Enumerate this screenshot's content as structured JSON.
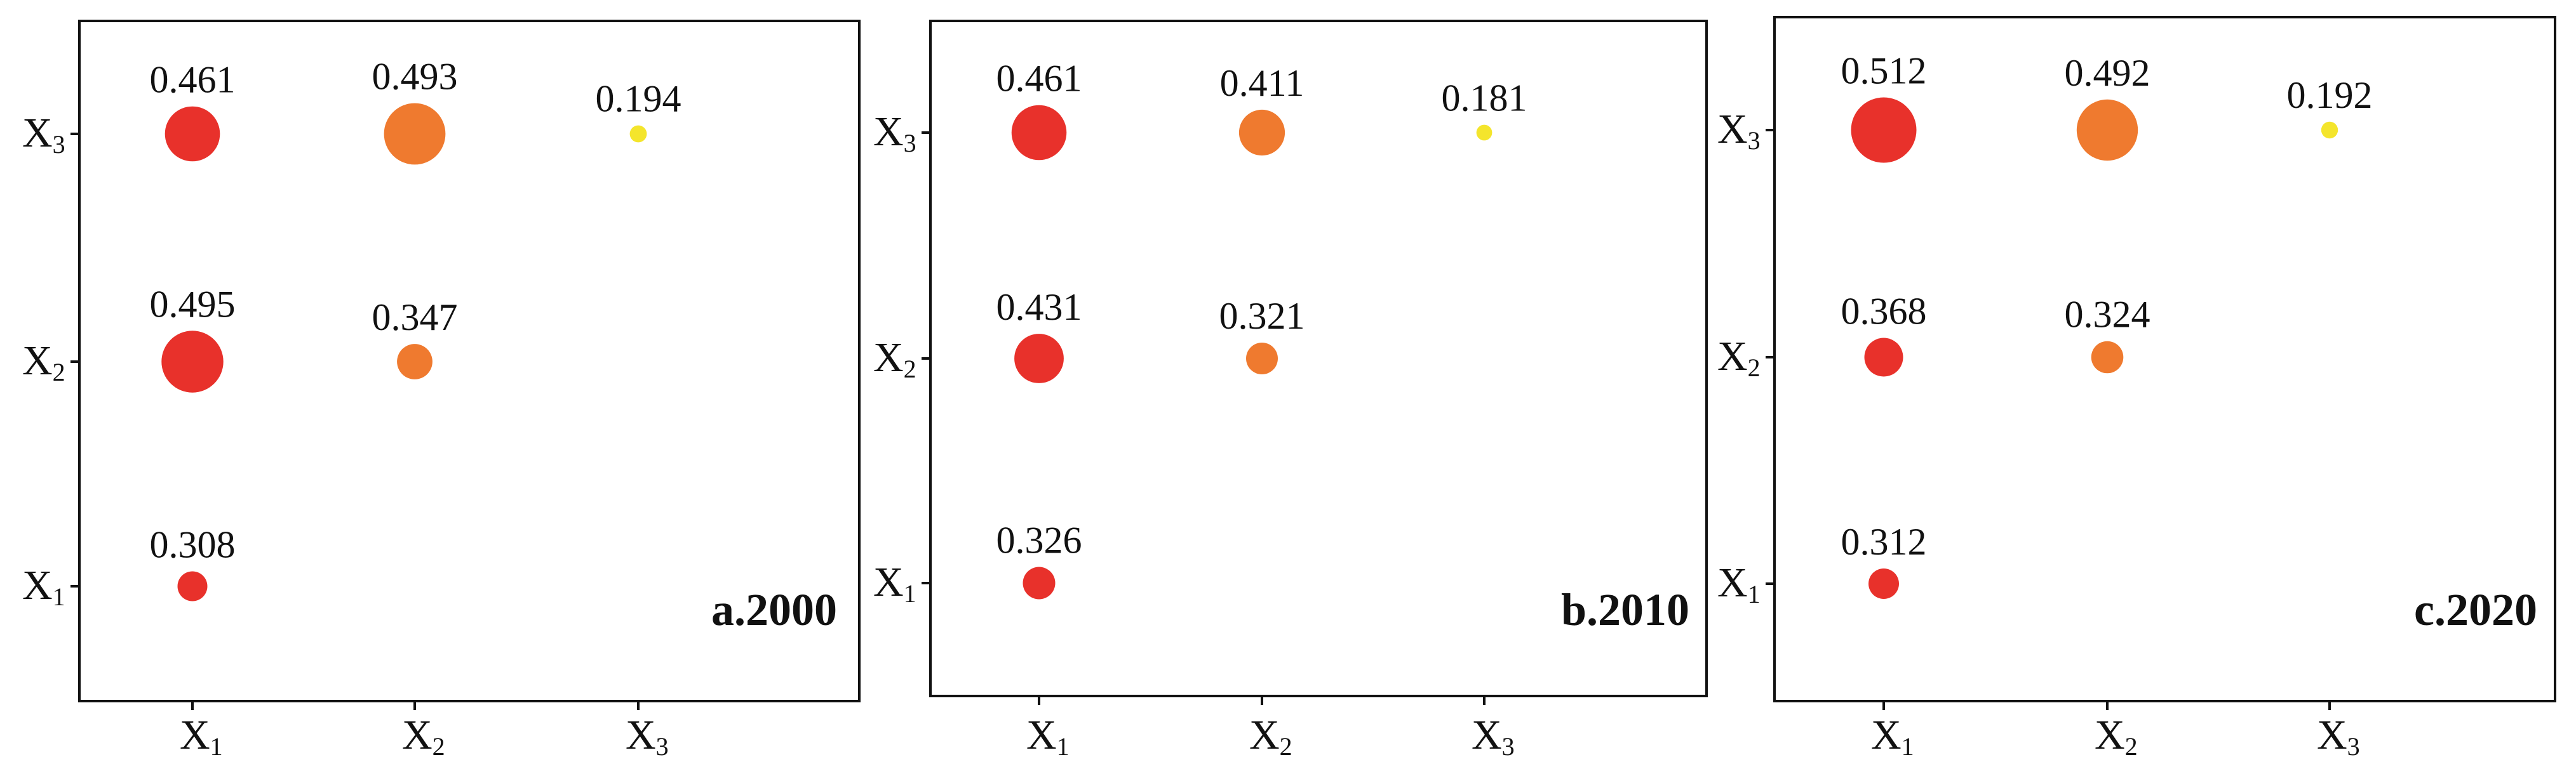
{
  "chart_data": [
    {
      "type": "scatter",
      "title": "a.2000",
      "x_categories": [
        "X1",
        "X2",
        "X3"
      ],
      "y_categories": [
        "X1",
        "X2",
        "X3"
      ],
      "points": [
        {
          "x": "X1",
          "y": "X1",
          "value": 0.308,
          "label": "0.308",
          "color": "#e8312b"
        },
        {
          "x": "X1",
          "y": "X2",
          "value": 0.495,
          "label": "0.495",
          "color": "#e8312b"
        },
        {
          "x": "X2",
          "y": "X2",
          "value": 0.347,
          "label": "0.347",
          "color": "#ef7a2f"
        },
        {
          "x": "X1",
          "y": "X3",
          "value": 0.461,
          "label": "0.461",
          "color": "#e8312b"
        },
        {
          "x": "X2",
          "y": "X3",
          "value": 0.493,
          "label": "0.493",
          "color": "#ef7a2f"
        },
        {
          "x": "X3",
          "y": "X3",
          "value": 0.194,
          "label": "0.194",
          "color": "#f4e52c"
        }
      ]
    },
    {
      "type": "scatter",
      "title": "b.2010",
      "x_categories": [
        "X1",
        "X2",
        "X3"
      ],
      "y_categories": [
        "X1",
        "X2",
        "X3"
      ],
      "points": [
        {
          "x": "X1",
          "y": "X1",
          "value": 0.326,
          "label": "0.326",
          "color": "#e8312b"
        },
        {
          "x": "X1",
          "y": "X2",
          "value": 0.431,
          "label": "0.431",
          "color": "#e8312b"
        },
        {
          "x": "X2",
          "y": "X2",
          "value": 0.321,
          "label": "0.321",
          "color": "#ef7a2f"
        },
        {
          "x": "X1",
          "y": "X3",
          "value": 0.461,
          "label": "0.461",
          "color": "#e8312b"
        },
        {
          "x": "X2",
          "y": "X3",
          "value": 0.411,
          "label": "0.411",
          "color": "#ef7a2f"
        },
        {
          "x": "X3",
          "y": "X3",
          "value": 0.181,
          "label": "0.181",
          "color": "#f4e52c"
        }
      ]
    },
    {
      "type": "scatter",
      "title": "c.2020",
      "x_categories": [
        "X1",
        "X2",
        "X3"
      ],
      "y_categories": [
        "X1",
        "X2",
        "X3"
      ],
      "points": [
        {
          "x": "X1",
          "y": "X1",
          "value": 0.312,
          "label": "0.312",
          "color": "#e8312b"
        },
        {
          "x": "X1",
          "y": "X2",
          "value": 0.368,
          "label": "0.368",
          "color": "#e8312b"
        },
        {
          "x": "X2",
          "y": "X2",
          "value": 0.324,
          "label": "0.324",
          "color": "#ef7a2f"
        },
        {
          "x": "X1",
          "y": "X3",
          "value": 0.512,
          "label": "0.512",
          "color": "#e8312b"
        },
        {
          "x": "X2",
          "y": "X3",
          "value": 0.492,
          "label": "0.492",
          "color": "#ef7a2f"
        },
        {
          "x": "X3",
          "y": "X3",
          "value": 0.192,
          "label": "0.192",
          "color": "#f4e52c"
        }
      ]
    }
  ]
}
